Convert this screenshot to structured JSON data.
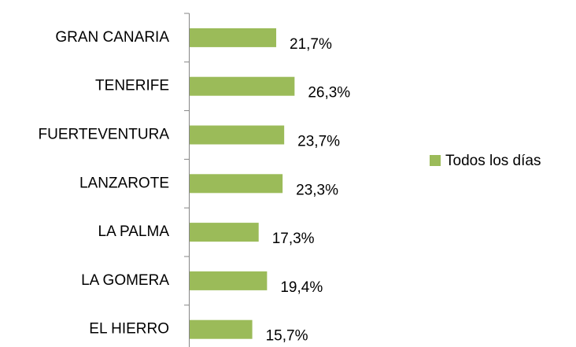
{
  "chart_data": {
    "type": "bar",
    "orientation": "horizontal",
    "categories": [
      "GRAN CANARIA",
      "TENERIFE",
      "FUERTEVENTURA",
      "LANZAROTE",
      "LA PALMA",
      "LA GOMERA",
      "EL HIERRO"
    ],
    "series": [
      {
        "name": "Todos los días",
        "color": "#9bbb59",
        "values": [
          21.7,
          26.3,
          23.7,
          23.3,
          17.3,
          19.4,
          15.7
        ],
        "value_labels": [
          "21,7%",
          "26,3%",
          "23,7%",
          "23,3%",
          "17,3%",
          "19,4%",
          "15,7%"
        ]
      }
    ],
    "legend": "right"
  }
}
